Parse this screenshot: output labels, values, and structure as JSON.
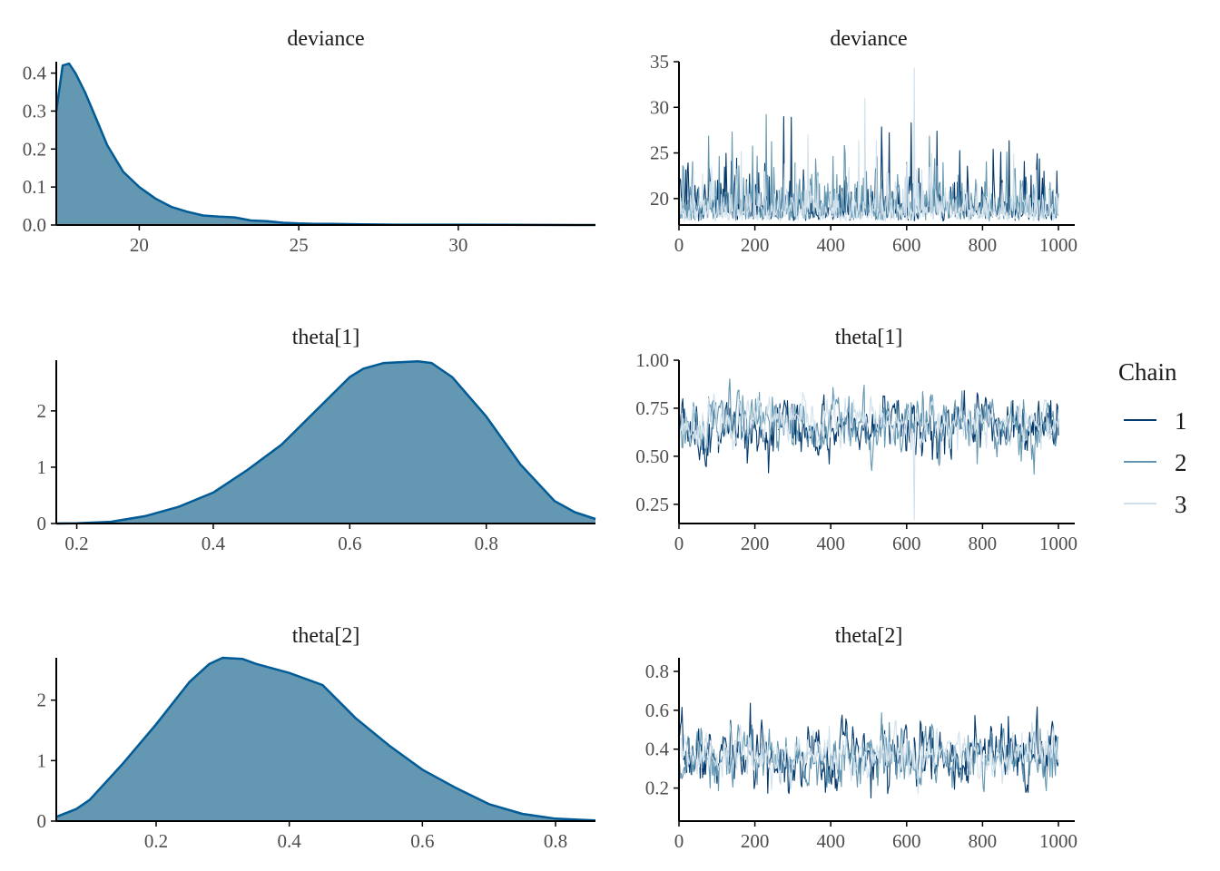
{
  "legend": {
    "title": "Chain",
    "entries": [
      {
        "label": "1",
        "color": "#03396c"
      },
      {
        "label": "2",
        "color": "#6497b1"
      },
      {
        "label": "3",
        "color": "#d1e1ec"
      }
    ]
  },
  "colors": {
    "density_fill": "#6497b1",
    "density_line": "#005b96",
    "axis": "#000000"
  },
  "chart_data": [
    {
      "type": "area",
      "title": "deviance",
      "xlim": [
        17.4,
        34.3
      ],
      "ylim": [
        0,
        0.43
      ],
      "xticks": [
        20,
        25,
        30
      ],
      "yticks": [
        0.0,
        0.1,
        0.2,
        0.3,
        0.4
      ],
      "ytick_labels": [
        "0.0",
        "0.1",
        "0.2",
        "0.3",
        "0.4"
      ],
      "x": [
        17.4,
        17.6,
        17.8,
        18.0,
        18.3,
        18.6,
        19.0,
        19.5,
        20.0,
        20.5,
        21.0,
        21.5,
        22.0,
        22.5,
        23.0,
        23.5,
        24.0,
        24.5,
        25.0,
        25.5,
        26.0,
        27.0,
        28.0,
        30.0,
        34.3
      ],
      "y": [
        0.3,
        0.42,
        0.425,
        0.4,
        0.35,
        0.29,
        0.21,
        0.14,
        0.1,
        0.07,
        0.048,
        0.035,
        0.025,
        0.022,
        0.02,
        0.012,
        0.01,
        0.006,
        0.004,
        0.003,
        0.003,
        0.002,
        0.001,
        0.001,
        0.0
      ]
    },
    {
      "type": "line",
      "title": "deviance",
      "xlim": [
        0,
        1000
      ],
      "ylim": [
        17.1,
        35
      ],
      "xticks": [
        0,
        200,
        400,
        600,
        800,
        1000
      ],
      "yticks": [
        20,
        25,
        30,
        35
      ],
      "series": [
        {
          "name": "1",
          "base": 17.5,
          "scale": 2.2,
          "max": 29.0,
          "spikes": [
            [
              295,
              28.9
            ],
            [
              612,
              28.3
            ],
            [
              553,
              27.2
            ]
          ],
          "seed": 11
        },
        {
          "name": "2",
          "base": 17.5,
          "scale": 2.2,
          "max": 29.0,
          "spikes": [
            [
              230,
              29.2
            ],
            [
              140,
              27.3
            ]
          ],
          "seed": 29
        },
        {
          "name": "3",
          "base": 17.4,
          "scale": 1.7,
          "max": 34.5,
          "spikes": [
            [
              620,
              34.3
            ],
            [
              490,
              31.0
            ]
          ],
          "seed": 47
        }
      ]
    },
    {
      "type": "area",
      "title": "theta[1]",
      "xlim": [
        0.17,
        0.96
      ],
      "ylim": [
        0,
        2.9
      ],
      "xticks": [
        0.2,
        0.4,
        0.6,
        0.8
      ],
      "yticks": [
        0,
        1,
        2
      ],
      "x": [
        0.17,
        0.2,
        0.25,
        0.3,
        0.35,
        0.4,
        0.45,
        0.5,
        0.55,
        0.6,
        0.62,
        0.65,
        0.7,
        0.72,
        0.75,
        0.8,
        0.85,
        0.9,
        0.93,
        0.96
      ],
      "y": [
        0.0,
        0.005,
        0.03,
        0.13,
        0.3,
        0.55,
        0.95,
        1.4,
        2.0,
        2.6,
        2.75,
        2.85,
        2.88,
        2.85,
        2.6,
        1.9,
        1.05,
        0.4,
        0.2,
        0.08
      ]
    },
    {
      "type": "line",
      "title": "theta[1]",
      "xlim": [
        0,
        1000
      ],
      "ylim": [
        0.15,
        1.0
      ],
      "xticks": [
        0,
        200,
        400,
        600,
        800,
        1000
      ],
      "yticks": [
        0.25,
        0.5,
        0.75,
        1.0
      ],
      "ytick_labels": [
        "0.25",
        "0.50",
        "0.75",
        "1.00"
      ],
      "series": [
        {
          "name": "1",
          "mean": 0.66,
          "sd": 0.14,
          "min": 0.33,
          "max": 0.96,
          "seed": 5
        },
        {
          "name": "2",
          "mean": 0.66,
          "sd": 0.14,
          "min": 0.31,
          "max": 0.96,
          "seed": 17
        },
        {
          "name": "3",
          "mean": 0.67,
          "sd": 0.11,
          "min": 0.17,
          "max": 0.93,
          "spikes": [
            [
              620,
              0.17
            ]
          ],
          "seed": 23
        }
      ]
    },
    {
      "type": "area",
      "title": "theta[2]",
      "xlim": [
        0.05,
        0.86
      ],
      "ylim": [
        0,
        2.7
      ],
      "xticks": [
        0.2,
        0.4,
        0.6,
        0.8
      ],
      "yticks": [
        0,
        1,
        2
      ],
      "x": [
        0.05,
        0.08,
        0.1,
        0.15,
        0.2,
        0.25,
        0.28,
        0.3,
        0.33,
        0.35,
        0.4,
        0.45,
        0.5,
        0.55,
        0.6,
        0.65,
        0.7,
        0.75,
        0.8,
        0.86
      ],
      "y": [
        0.07,
        0.2,
        0.35,
        0.95,
        1.6,
        2.3,
        2.6,
        2.7,
        2.68,
        2.6,
        2.45,
        2.25,
        1.7,
        1.25,
        0.85,
        0.55,
        0.28,
        0.12,
        0.04,
        0.01
      ]
    },
    {
      "type": "line",
      "title": "theta[2]",
      "xlim": [
        0,
        1000
      ],
      "ylim": [
        0.03,
        0.87
      ],
      "xticks": [
        0,
        200,
        400,
        600,
        800,
        1000
      ],
      "yticks": [
        0.2,
        0.4,
        0.6,
        0.8
      ],
      "series": [
        {
          "name": "1",
          "mean": 0.36,
          "sd": 0.15,
          "min": 0.05,
          "max": 0.85,
          "seed": 7
        },
        {
          "name": "2",
          "mean": 0.35,
          "sd": 0.14,
          "min": 0.05,
          "max": 0.8,
          "seed": 13
        },
        {
          "name": "3",
          "mean": 0.36,
          "sd": 0.12,
          "min": 0.04,
          "max": 0.75,
          "seed": 31
        }
      ]
    }
  ]
}
